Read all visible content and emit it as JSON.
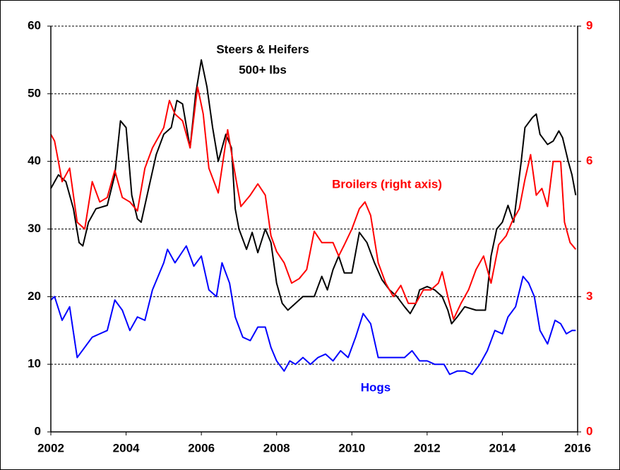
{
  "chart_data": {
    "type": "line",
    "annotations": [
      "Steers & Heifers",
      "500+ lbs",
      "Broilers (right axis)",
      "Hogs"
    ],
    "xlim": [
      2002,
      2016
    ],
    "xticks": [
      2002,
      2004,
      2006,
      2008,
      2010,
      2012,
      2014,
      2016
    ],
    "ylim": [
      0,
      60
    ],
    "yticks": [
      0,
      10,
      20,
      30,
      40,
      50,
      60
    ],
    "y2lim": [
      0,
      9
    ],
    "y2ticks": [
      0,
      3,
      6,
      9
    ],
    "y2color": "#ff0000",
    "grid": true,
    "series": [
      {
        "name": "Steers & Heifers 500+ lbs",
        "color": "#000000",
        "x": [
          2002.0,
          2002.2,
          2002.4,
          2002.6,
          2002.75,
          2002.85,
          2003.0,
          2003.2,
          2003.5,
          2003.7,
          2003.85,
          2004.0,
          2004.15,
          2004.3,
          2004.4,
          2004.6,
          2004.8,
          2005.0,
          2005.2,
          2005.35,
          2005.5,
          2005.7,
          2005.85,
          2006.0,
          2006.15,
          2006.3,
          2006.45,
          2006.65,
          2006.8,
          2006.9,
          2007.0,
          2007.2,
          2007.35,
          2007.5,
          2007.7,
          2007.85,
          2008.0,
          2008.15,
          2008.3,
          2008.5,
          2008.7,
          2009.0,
          2009.2,
          2009.35,
          2009.5,
          2009.65,
          2009.8,
          2010.0,
          2010.2,
          2010.4,
          2010.6,
          2010.8,
          2011.0,
          2011.2,
          2011.4,
          2011.55,
          2011.7,
          2011.8,
          2012.0,
          2012.2,
          2012.4,
          2012.55,
          2012.65,
          2012.8,
          2013.0,
          2013.3,
          2013.55,
          2013.7,
          2013.85,
          2014.0,
          2014.15,
          2014.3,
          2014.5,
          2014.6,
          2014.8,
          2014.9,
          2015.0,
          2015.2,
          2015.35,
          2015.5,
          2015.6,
          2015.75,
          2015.85,
          2015.95
        ],
        "values": [
          36,
          38,
          37,
          33,
          28,
          27.5,
          31,
          33,
          33.5,
          38,
          46,
          45,
          35,
          31.5,
          31,
          36,
          41,
          44,
          45,
          49,
          48.5,
          42,
          50,
          55,
          51,
          45,
          40,
          44,
          42,
          33,
          30,
          27,
          29.5,
          26.5,
          30,
          28,
          22,
          19,
          18,
          19,
          20,
          20,
          23,
          21,
          24,
          26,
          23.5,
          23.5,
          29.5,
          28,
          25,
          22.5,
          21,
          20,
          18.5,
          17.5,
          19,
          21,
          21.5,
          21,
          20,
          18,
          16,
          17,
          18.5,
          18,
          18,
          26,
          30,
          31,
          33.5,
          31,
          40,
          45,
          46.5,
          47,
          44,
          42.5,
          43,
          44.5,
          43.5,
          40,
          38,
          35
        ]
      },
      {
        "name": "Broilers (right axis)",
        "color": "#ff0000",
        "axis": "y2",
        "x": [
          2002.0,
          2002.1,
          2002.3,
          2002.5,
          2002.7,
          2002.9,
          2003.1,
          2003.3,
          2003.5,
          2003.7,
          2003.9,
          2004.1,
          2004.3,
          2004.5,
          2004.7,
          2005.0,
          2005.15,
          2005.3,
          2005.5,
          2005.7,
          2005.9,
          2006.05,
          2006.2,
          2006.45,
          2006.7,
          2006.9,
          2007.05,
          2007.3,
          2007.5,
          2007.7,
          2007.85,
          2008.0,
          2008.2,
          2008.4,
          2008.6,
          2008.8,
          2009.0,
          2009.2,
          2009.5,
          2009.65,
          2009.8,
          2010.0,
          2010.2,
          2010.35,
          2010.5,
          2010.7,
          2010.9,
          2011.1,
          2011.3,
          2011.5,
          2011.7,
          2011.9,
          2012.1,
          2012.3,
          2012.4,
          2012.55,
          2012.7,
          2012.9,
          2013.1,
          2013.3,
          2013.5,
          2013.7,
          2013.9,
          2014.1,
          2014.25,
          2014.45,
          2014.6,
          2014.75,
          2014.9,
          2015.05,
          2015.2,
          2015.35,
          2015.55,
          2015.65,
          2015.8,
          2015.95
        ],
        "values": [
          6.6,
          6.45,
          5.55,
          5.85,
          4.65,
          4.5,
          5.55,
          5.1,
          5.2,
          5.8,
          5.2,
          5.1,
          4.9,
          5.85,
          6.3,
          6.75,
          7.35,
          7.05,
          6.9,
          6.3,
          7.65,
          7.05,
          5.85,
          5.3,
          6.7,
          5.7,
          5.0,
          5.25,
          5.5,
          5.25,
          4.35,
          4.0,
          3.75,
          3.3,
          3.4,
          3.6,
          4.45,
          4.2,
          4.2,
          3.9,
          4.15,
          4.5,
          4.95,
          5.1,
          4.8,
          3.75,
          3.3,
          3.0,
          3.25,
          2.85,
          2.85,
          3.15,
          3.15,
          3.3,
          3.55,
          3.0,
          2.5,
          2.85,
          3.15,
          3.6,
          3.9,
          3.3,
          4.15,
          4.35,
          4.65,
          4.95,
          5.6,
          6.15,
          5.25,
          5.4,
          5.0,
          6.0,
          6.0,
          4.65,
          4.2,
          4.05
        ]
      },
      {
        "name": "Hogs",
        "color": "#0000ff",
        "x": [
          2002.0,
          2002.1,
          2002.3,
          2002.5,
          2002.7,
          2002.9,
          2003.1,
          2003.3,
          2003.5,
          2003.7,
          2003.9,
          2004.1,
          2004.3,
          2004.5,
          2004.7,
          2005.0,
          2005.1,
          2005.3,
          2005.6,
          2005.8,
          2006.0,
          2006.2,
          2006.4,
          2006.55,
          2006.75,
          2006.9,
          2007.1,
          2007.3,
          2007.5,
          2007.7,
          2007.85,
          2008.0,
          2008.2,
          2008.35,
          2008.5,
          2008.7,
          2008.9,
          2009.1,
          2009.3,
          2009.5,
          2009.7,
          2009.9,
          2010.1,
          2010.3,
          2010.5,
          2010.7,
          2010.9,
          2011.1,
          2011.4,
          2011.6,
          2011.8,
          2012.0,
          2012.2,
          2012.45,
          2012.6,
          2012.8,
          2013.0,
          2013.2,
          2013.4,
          2013.6,
          2013.8,
          2014.0,
          2014.15,
          2014.35,
          2014.55,
          2014.7,
          2014.85,
          2015.0,
          2015.2,
          2015.4,
          2015.55,
          2015.7,
          2015.85,
          2015.95
        ],
        "values": [
          19.5,
          20,
          16.5,
          18.5,
          11,
          12.5,
          14,
          14.5,
          15,
          19.5,
          18,
          15,
          17,
          16.5,
          21,
          25,
          27,
          25,
          27.5,
          24.5,
          26,
          21,
          20,
          25,
          22,
          17,
          14,
          13.5,
          15.5,
          15.5,
          12.5,
          10.5,
          9,
          10.5,
          10,
          11,
          10,
          11,
          11.5,
          10.5,
          12,
          11,
          14,
          17.5,
          16,
          11,
          11,
          11,
          11,
          12,
          10.5,
          10.5,
          10,
          10,
          8.5,
          9,
          9,
          8.5,
          10,
          12,
          15,
          14.5,
          17,
          18.5,
          23,
          22,
          20,
          15,
          13,
          16.5,
          16,
          14.5,
          15,
          15
        ]
      }
    ]
  }
}
